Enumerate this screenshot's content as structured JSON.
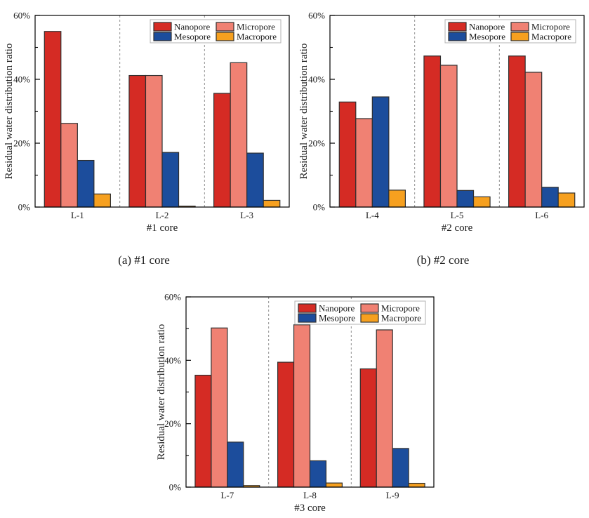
{
  "figure": {
    "background": "#ffffff"
  },
  "captions": {
    "a": "(a) #1 core",
    "b": "(b) #2 core"
  },
  "colors": {
    "axis": "#000000",
    "text": "#1a1a1a",
    "bar_edge": "#2f2f2f",
    "separator": "#8f8f8f",
    "legend_border": "#b3b3b3",
    "legend_fill": "#ffffff",
    "nanopore": "#d52b24",
    "micropore": "#f08173",
    "mesopore": "#1c4d9c",
    "macropore": "#f6a01f"
  },
  "legend": {
    "position": "top-right",
    "entries": [
      {
        "label": "Nanopore",
        "color": "#d52b24"
      },
      {
        "label": "Micropore",
        "color": "#f08173"
      },
      {
        "label": "Mesopore",
        "color": "#1c4d9c"
      },
      {
        "label": "Macropore",
        "color": "#f6a01f"
      }
    ]
  },
  "chart_data": [
    {
      "type": "bar",
      "xlabel": "#1 core",
      "ylabel": "Residual water distribution ratio",
      "categories": [
        "L-1",
        "L-2",
        "L-3"
      ],
      "ylim": [
        0,
        60
      ],
      "yticks": [
        0,
        20,
        40,
        60
      ],
      "ytick_labels": [
        "0%",
        "20%",
        "40%",
        "60%"
      ],
      "minor_ticks": [
        10,
        30,
        50
      ],
      "grid": "off",
      "group_separators": "dashed",
      "legend_position": "top-right",
      "series": [
        {
          "name": "Nanopore",
          "color": "#d52b24",
          "values": [
            55.0,
            41.2,
            35.6
          ]
        },
        {
          "name": "Micropore",
          "color": "#f08173",
          "values": [
            26.2,
            41.2,
            45.2
          ]
        },
        {
          "name": "Mesopore",
          "color": "#1c4d9c",
          "values": [
            14.6,
            17.1,
            16.9
          ]
        },
        {
          "name": "Macropore",
          "color": "#f6a01f",
          "values": [
            4.1,
            0.3,
            2.1
          ]
        }
      ]
    },
    {
      "type": "bar",
      "xlabel": "#2 core",
      "ylabel": "Residual water distribution ratio",
      "categories": [
        "L-4",
        "L-5",
        "L-6"
      ],
      "ylim": [
        0,
        60
      ],
      "yticks": [
        0,
        20,
        40,
        60
      ],
      "ytick_labels": [
        "0%",
        "20%",
        "40%",
        "60%"
      ],
      "minor_ticks": [
        10,
        30,
        50
      ],
      "grid": "off",
      "group_separators": "dashed",
      "legend_position": "top-right",
      "series": [
        {
          "name": "Nanopore",
          "color": "#d52b24",
          "values": [
            32.9,
            47.3,
            47.3
          ]
        },
        {
          "name": "Micropore",
          "color": "#f08173",
          "values": [
            27.7,
            44.4,
            42.2
          ]
        },
        {
          "name": "Mesopore",
          "color": "#1c4d9c",
          "values": [
            34.5,
            5.2,
            6.2
          ]
        },
        {
          "name": "Macropore",
          "color": "#f6a01f",
          "values": [
            5.3,
            3.2,
            4.4
          ]
        }
      ]
    },
    {
      "type": "bar",
      "xlabel": "#3 core",
      "ylabel": "Residual water distribution ratio",
      "categories": [
        "L-7",
        "L-8",
        "L-9"
      ],
      "ylim": [
        0,
        60
      ],
      "yticks": [
        0,
        20,
        40,
        60
      ],
      "ytick_labels": [
        "0%",
        "20%",
        "40%",
        "60%"
      ],
      "minor_ticks": [
        10,
        30,
        50
      ],
      "grid": "off",
      "group_separators": "dashed",
      "legend_position": "top-right",
      "series": [
        {
          "name": "Nanopore",
          "color": "#d52b24",
          "values": [
            35.3,
            39.4,
            37.3
          ]
        },
        {
          "name": "Micropore",
          "color": "#f08173",
          "values": [
            50.2,
            51.2,
            49.6
          ]
        },
        {
          "name": "Mesopore",
          "color": "#1c4d9c",
          "values": [
            14.2,
            8.3,
            12.2
          ]
        },
        {
          "name": "Macropore",
          "color": "#f6a01f",
          "values": [
            0.5,
            1.3,
            1.2
          ]
        }
      ]
    }
  ]
}
